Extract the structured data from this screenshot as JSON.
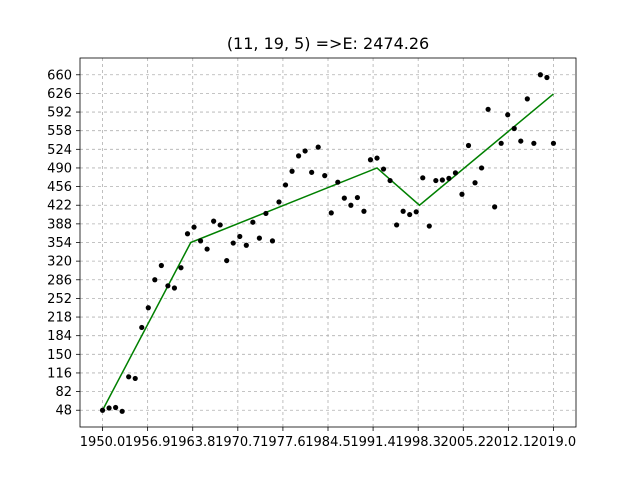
{
  "chart_data": {
    "type": "scatter",
    "title": "(11, 19, 5) =>E: 2474.26",
    "xlabel": "",
    "ylabel": "",
    "xlim": [
      1950.0,
      2019.0
    ],
    "ylim": [
      48,
      660
    ],
    "x_ticks": [
      "1950.0",
      "1956.9",
      "1963.8",
      "1970.7",
      "1977.6",
      "1984.5",
      "1991.4",
      "1998.3",
      "2005.2",
      "2012.1",
      "2019.0"
    ],
    "y_ticks": [
      "48",
      "82",
      "116",
      "150",
      "184",
      "218",
      "252",
      "286",
      "320",
      "354",
      "388",
      "422",
      "456",
      "490",
      "524",
      "558",
      "592",
      "626",
      "660"
    ],
    "grid": true,
    "series": [
      {
        "type": "scatter",
        "color": "#000000",
        "x": [
          1950,
          1951,
          1952,
          1953,
          1954,
          1955,
          1956,
          1957,
          1958,
          1959,
          1960,
          1961,
          1962,
          1963,
          1964,
          1965,
          1966,
          1967,
          1968,
          1969,
          1970,
          1971,
          1972,
          1973,
          1974,
          1975,
          1976,
          1977,
          1978,
          1979,
          1980,
          1981,
          1982,
          1983,
          1984,
          1985,
          1986,
          1987,
          1988,
          1989,
          1990,
          1991,
          1992,
          1993,
          1994,
          1995,
          1996,
          1997,
          1998,
          1999,
          2000,
          2001,
          2002,
          2003,
          2004,
          2005,
          2006,
          2007,
          2008,
          2009,
          2010,
          2011,
          2012,
          2013,
          2014,
          2015,
          2016,
          2017,
          2018,
          2019
        ],
        "y": [
          48,
          52,
          53,
          46,
          109,
          106,
          199,
          235,
          286,
          312,
          275,
          271,
          308,
          370,
          382,
          357,
          342,
          393,
          386,
          321,
          353,
          365,
          349,
          391,
          362,
          407,
          357,
          428,
          459,
          484,
          512,
          521,
          482,
          528,
          476,
          408,
          464,
          435,
          422,
          436,
          411,
          505,
          508,
          488,
          467,
          386,
          411,
          405,
          410,
          472,
          384,
          467,
          468,
          471,
          481,
          442,
          531,
          463,
          490,
          597,
          419,
          535,
          587,
          562,
          539,
          616,
          535,
          660,
          655,
          535
        ]
      },
      {
        "type": "line",
        "color": "#008000",
        "x": [
          1950,
          1963.5,
          1992,
          1998.5,
          2019
        ],
        "y": [
          48,
          354,
          490,
          422,
          625
        ]
      }
    ]
  }
}
